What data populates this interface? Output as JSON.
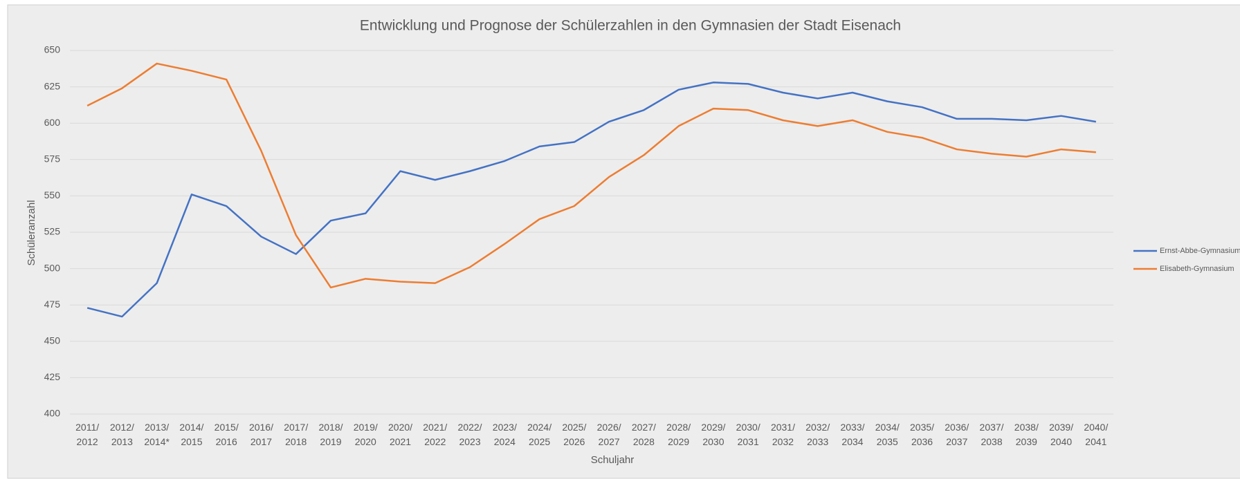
{
  "chart_data": {
    "type": "line",
    "title": "Entwicklung und Prognose der Schülerzahlen in den Gymnasien der Stadt Eisenach",
    "x_label": "Schuljahr",
    "y_label": "Schüleranzahl",
    "categories": [
      "2011/\n2012",
      "2012/\n2013",
      "2013/\n2014*",
      "2014/\n2015",
      "2015/\n2016",
      "2016/\n2017",
      "2017/\n2018",
      "2018/\n2019",
      "2019/\n2020",
      "2020/\n2021",
      "2021/\n2022",
      "2022/\n2023",
      "2023/\n2024",
      "2024/\n2025",
      "2025/\n2026",
      "2026/\n2027",
      "2027/\n2028",
      "2028/\n2029",
      "2029/\n2030",
      "2030/\n2031",
      "2031/\n2032",
      "2032/\n2033",
      "2033/\n2034",
      "2034/\n2035",
      "2035/\n2036",
      "2036/\n2037",
      "2037/\n2038",
      "2038/\n2039",
      "2039/\n2040",
      "2040/\n2041"
    ],
    "series": [
      {
        "name": "Ernst-Abbe-Gymnasium",
        "color": "#4472c4",
        "values": [
          473,
          467,
          490,
          551,
          543,
          522,
          510,
          533,
          538,
          567,
          561,
          567,
          574,
          584,
          587,
          601,
          609,
          623,
          628,
          627,
          621,
          617,
          621,
          615,
          611,
          603,
          603,
          602,
          605,
          601
        ]
      },
      {
        "name": "Elisabeth-Gymnasium",
        "color": "#ed7d31",
        "values": [
          612,
          624,
          641,
          636,
          630,
          581,
          523,
          487,
          493,
          491,
          490,
          501,
          517,
          534,
          543,
          563,
          578,
          598,
          610,
          609,
          602,
          598,
          602,
          594,
          590,
          582,
          579,
          577,
          582,
          580
        ]
      }
    ],
    "ylim": [
      400,
      650
    ],
    "yticks": [
      400,
      425,
      450,
      475,
      500,
      525,
      550,
      575,
      600,
      625,
      650
    ],
    "grid": true,
    "legend_position": "right"
  }
}
